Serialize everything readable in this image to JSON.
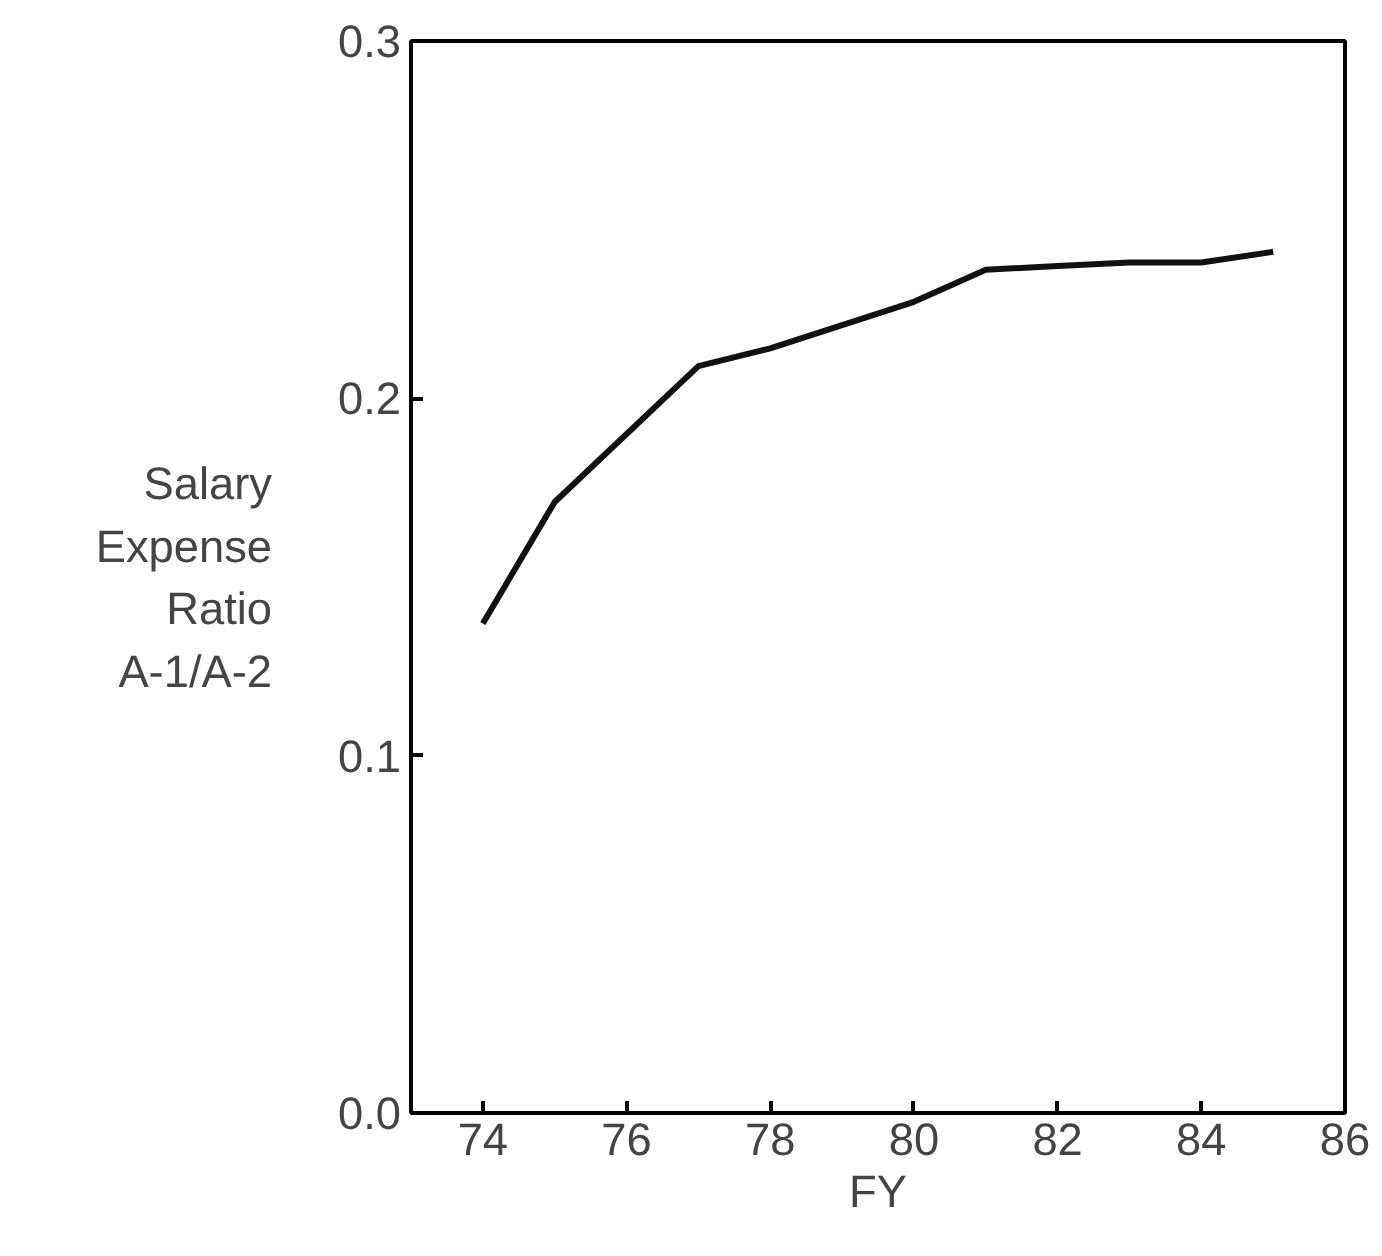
{
  "chart_data": {
    "type": "line",
    "xlabel": "FY",
    "ylabel": "Salary\nExpense\nRatio\nA-1/A-2",
    "x": [
      74,
      75,
      77,
      78,
      80,
      81,
      82,
      83,
      84,
      85
    ],
    "values": [
      0.137,
      0.171,
      0.209,
      0.214,
      0.227,
      0.236,
      0.237,
      0.238,
      0.238,
      0.241
    ],
    "color": "#111111",
    "xlim": [
      73,
      86
    ],
    "ylim": [
      0,
      0.3
    ],
    "xticks": [
      74,
      76,
      78,
      80,
      82,
      84,
      86
    ],
    "yticks": [
      {
        "value": 0,
        "label": "0.0"
      },
      {
        "value": 0.1,
        "label": "0.1"
      },
      {
        "value": 0.2,
        "label": "0.2"
      },
      {
        "value": 0.3,
        "label": "0.3"
      }
    ],
    "grid": false,
    "marker": "none",
    "line_style": "solid"
  }
}
